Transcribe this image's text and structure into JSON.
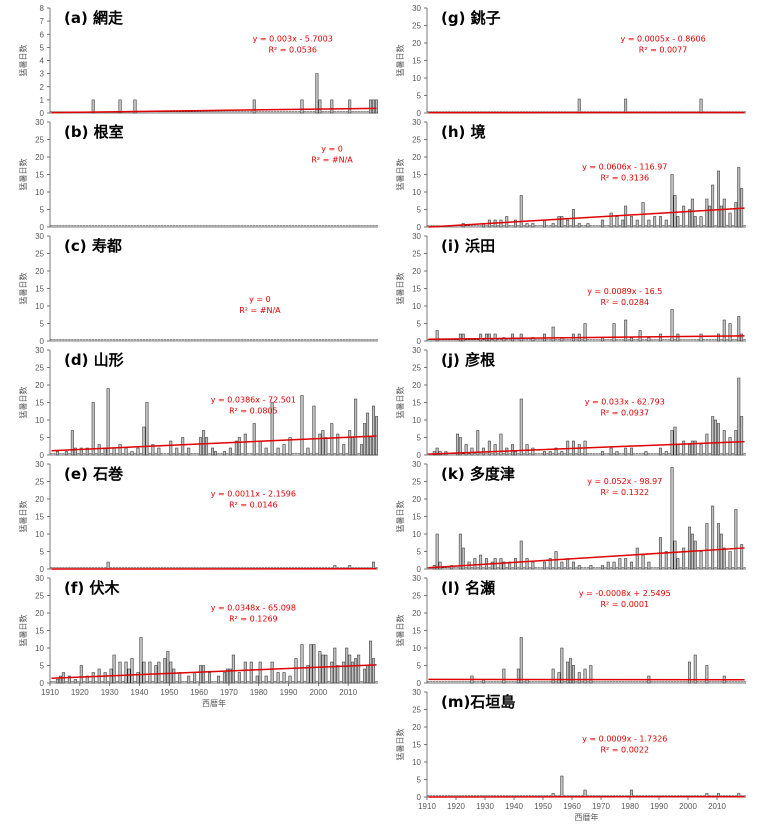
{
  "chart_data": [
    {
      "id": "a",
      "title": "(a) 網走",
      "type": "bar",
      "ylim": [
        0,
        8
      ],
      "yticks": [
        0,
        1,
        2,
        3,
        4,
        5,
        6,
        7,
        8
      ],
      "ylabel": "猛暑日数",
      "equation": "y = 0.003x - 5.7003",
      "r2": "R² = 0.0536",
      "trend": {
        "slope": 0.003,
        "intercept": -5.7003
      },
      "values": {
        "1924": 1,
        "1933": 1,
        "1938": 1,
        "1978": 1,
        "1994": 1,
        "1999": 3,
        "2000": 1,
        "2004": 1,
        "2010": 1,
        "2017": 1,
        "2018": 1,
        "2019": 1
      }
    },
    {
      "id": "b",
      "title": "(b) 根室",
      "type": "bar",
      "ylim": [
        0,
        30
      ],
      "yticks": [
        0,
        5,
        10,
        15,
        20,
        25,
        30
      ],
      "ylabel": "猛暑日数",
      "equation": "y = 0",
      "r2": "R² = #N/A",
      "trend": null,
      "values": {}
    },
    {
      "id": "c",
      "title": "(c) 寿都",
      "type": "bar",
      "ylim": [
        0,
        30
      ],
      "yticks": [
        0,
        5,
        10,
        15,
        20,
        25,
        30
      ],
      "ylabel": "猛暑日数",
      "equation": "y = 0",
      "r2": "R² = #N/A",
      "trend": null,
      "values": {}
    },
    {
      "id": "d",
      "title": "(d) 山形",
      "type": "bar",
      "ylim": [
        0,
        30
      ],
      "yticks": [
        0,
        5,
        10,
        15,
        20,
        25,
        30
      ],
      "ylabel": "猛暑日数",
      "equation": "y = 0.0386x - 72.501",
      "r2": "R² = 0.0805",
      "trend": {
        "slope": 0.0386,
        "intercept": -72.501
      },
      "values": {
        "1912": 1,
        "1915": 1,
        "1917": 7,
        "1918": 2,
        "1920": 2,
        "1922": 2,
        "1924": 15,
        "1926": 3,
        "1928": 2,
        "1929": 19,
        "1931": 2,
        "1933": 3,
        "1935": 2,
        "1937": 1,
        "1939": 2,
        "1941": 8,
        "1942": 15,
        "1944": 3,
        "1946": 2,
        "1950": 4,
        "1952": 2,
        "1954": 5,
        "1956": 2,
        "1960": 5,
        "1961": 7,
        "1962": 5,
        "1964": 2,
        "1965": 1,
        "1968": 1,
        "1970": 2,
        "1972": 4,
        "1973": 5,
        "1975": 6,
        "1978": 9,
        "1980": 4,
        "1982": 2,
        "1984": 15,
        "1986": 2,
        "1988": 3,
        "1990": 5,
        "1994": 17,
        "1996": 2,
        "1998": 14,
        "2000": 6,
        "2001": 7,
        "2002": 5,
        "2004": 9,
        "2006": 6,
        "2008": 3,
        "2010": 7,
        "2011": 5,
        "2012": 16,
        "2014": 3,
        "2015": 9,
        "2016": 12,
        "2017": 5,
        "2018": 14,
        "2019": 11
      }
    },
    {
      "id": "e",
      "title": "(e) 石巻",
      "type": "bar",
      "ylim": [
        0,
        30
      ],
      "yticks": [
        0,
        5,
        10,
        15,
        20,
        25,
        30
      ],
      "ylabel": "猛暑日数",
      "equation": "y = 0.0011x - 2.1596",
      "r2": "R² = 0.0146",
      "trend": {
        "slope": 0.0011,
        "intercept": -2.1596
      },
      "values": {
        "1929": 2,
        "2005": 1,
        "2010": 1,
        "2018": 2
      }
    },
    {
      "id": "f",
      "title": "(f) 伏木",
      "type": "bar",
      "ylim": [
        0,
        30
      ],
      "yticks": [
        0,
        5,
        10,
        15,
        20,
        25,
        30
      ],
      "ylabel": "猛暑日数",
      "equation": "y = 0.0348x - 65.098",
      "r2": "R² = 0.1269",
      "trend": {
        "slope": 0.0348,
        "intercept": -65.098
      },
      "values": {
        "1912": 1,
        "1913": 2,
        "1914": 3,
        "1916": 2,
        "1918": 1,
        "1920": 5,
        "1922": 2,
        "1924": 3,
        "1926": 4,
        "1928": 3,
        "1930": 4,
        "1931": 8,
        "1933": 6,
        "1935": 6,
        "1936": 4,
        "1937": 7,
        "1939": 3,
        "1940": 13,
        "1941": 6,
        "1943": 6,
        "1945": 5,
        "1946": 6,
        "1948": 7,
        "1949": 9,
        "1950": 6,
        "1951": 4,
        "1953": 3,
        "1956": 2,
        "1958": 3,
        "1960": 5,
        "1961": 5,
        "1963": 3,
        "1966": 2,
        "1968": 3,
        "1969": 4,
        "1970": 4,
        "1971": 8,
        "1973": 3,
        "1975": 6,
        "1977": 6,
        "1979": 2,
        "1980": 6,
        "1982": 2,
        "1984": 6,
        "1986": 3,
        "1988": 3,
        "1990": 2,
        "1992": 7,
        "1994": 11,
        "1996": 5,
        "1997": 11,
        "1998": 11,
        "2000": 9,
        "2001": 8,
        "2002": 8,
        "2004": 6,
        "2005": 10,
        "2006": 5,
        "2008": 6,
        "2009": 10,
        "2010": 8,
        "2011": 6,
        "2012": 7,
        "2013": 8,
        "2015": 4,
        "2016": 5,
        "2017": 12,
        "2018": 7
      }
    },
    {
      "id": "g",
      "title": "(g) 銚子",
      "type": "bar",
      "ylim": [
        0,
        30
      ],
      "yticks": [
        0,
        5,
        10,
        15,
        20,
        25,
        30
      ],
      "ylabel": "猛暑日数",
      "equation": "y = 0.0005x - 0.8606",
      "r2": "R² = 0.0077",
      "trend": {
        "slope": 0.0005,
        "intercept": -0.8606
      },
      "values": {
        "1962": 4,
        "1978": 4,
        "2004": 4
      }
    },
    {
      "id": "h",
      "title": "(h) 境",
      "type": "bar",
      "ylim": [
        0,
        30
      ],
      "yticks": [
        0,
        5,
        10,
        15,
        20,
        25,
        30
      ],
      "ylabel": "猛暑日数",
      "equation": "y = 0.0606x - 116.97",
      "r2": "R² = 0.3136",
      "trend": {
        "slope": 0.0606,
        "intercept": -116.97
      },
      "values": {
        "1922": 1,
        "1929": 1,
        "1931": 2,
        "1933": 2,
        "1935": 2,
        "1937": 3,
        "1940": 2,
        "1942": 9,
        "1944": 1,
        "1946": 1,
        "1950": 2,
        "1953": 1,
        "1955": 3,
        "1956": 3,
        "1958": 2,
        "1960": 5,
        "1962": 1,
        "1965": 1,
        "1970": 2,
        "1973": 4,
        "1975": 3,
        "1977": 2,
        "1978": 6,
        "1980": 3,
        "1982": 2,
        "1984": 7,
        "1986": 2,
        "1988": 3,
        "1990": 3,
        "1992": 2,
        "1994": 15,
        "1995": 9,
        "1996": 3,
        "1998": 6,
        "2000": 5,
        "2001": 8,
        "2002": 3,
        "2004": 3,
        "2006": 8,
        "2007": 6,
        "2008": 12,
        "2010": 16,
        "2011": 6,
        "2012": 8,
        "2014": 4,
        "2016": 7,
        "2017": 17,
        "2018": 11
      }
    },
    {
      "id": "i",
      "title": "(i) 浜田",
      "type": "bar",
      "ylim": [
        0,
        30
      ],
      "yticks": [
        0,
        5,
        10,
        15,
        20,
        25,
        30
      ],
      "ylabel": "猛暑日数",
      "equation": "y = 0.0089x - 16.5",
      "r2": "R² = 0.0284",
      "trend": {
        "slope": 0.0089,
        "intercept": -16.5
      },
      "values": {
        "1913": 3,
        "1921": 2,
        "1922": 2,
        "1928": 2,
        "1930": 2,
        "1931": 2,
        "1933": 2,
        "1936": 1,
        "1939": 2,
        "1942": 2,
        "1946": 1,
        "1950": 2,
        "1953": 4,
        "1956": 1,
        "1960": 2,
        "1962": 2,
        "1964": 5,
        "1970": 1,
        "1974": 5,
        "1978": 6,
        "1980": 1,
        "1983": 3,
        "1986": 1,
        "1990": 2,
        "1994": 9,
        "1996": 2,
        "2004": 2,
        "2010": 2,
        "2012": 6,
        "2014": 5,
        "2017": 7,
        "2018": 2
      }
    },
    {
      "id": "j",
      "title": "(j) 彦根",
      "type": "bar",
      "ylim": [
        0,
        30
      ],
      "yticks": [
        0,
        5,
        10,
        15,
        20,
        25,
        30
      ],
      "ylabel": "猛暑日数",
      "equation": "y = 0.033x - 62.793",
      "r2": "R² = 0.0937",
      "trend": {
        "slope": 0.033,
        "intercept": -62.793
      },
      "values": {
        "1912": 1,
        "1913": 2,
        "1914": 1,
        "1916": 1,
        "1920": 6,
        "1921": 5,
        "1923": 3,
        "1925": 2,
        "1927": 7,
        "1929": 2,
        "1931": 4,
        "1933": 3,
        "1935": 6,
        "1937": 2,
        "1939": 3,
        "1940": 1,
        "1942": 16,
        "1944": 3,
        "1946": 2,
        "1950": 1,
        "1952": 1,
        "1954": 2,
        "1956": 1,
        "1958": 4,
        "1960": 4,
        "1962": 3,
        "1964": 4,
        "1970": 1,
        "1973": 2,
        "1975": 1,
        "1978": 2,
        "1980": 2,
        "1985": 1,
        "1990": 2,
        "1992": 1,
        "1994": 7,
        "1995": 8,
        "1996": 3,
        "1998": 4,
        "2000": 3,
        "2001": 4,
        "2002": 4,
        "2004": 3,
        "2006": 6,
        "2008": 11,
        "2009": 10,
        "2010": 9,
        "2012": 7,
        "2014": 5,
        "2016": 7,
        "2017": 22,
        "2018": 11
      }
    },
    {
      "id": "k",
      "title": "(k) 多度津",
      "type": "bar",
      "ylim": [
        0,
        30
      ],
      "yticks": [
        0,
        5,
        10,
        15,
        20,
        25,
        30
      ],
      "ylabel": "猛暑日数",
      "equation": "y = 0.052x - 98.97",
      "r2": "R² = 0.1322",
      "trend": {
        "slope": 0.052,
        "intercept": -98.97
      },
      "values": {
        "1912": 1,
        "1913": 10,
        "1914": 2,
        "1918": 1,
        "1921": 10,
        "1922": 6,
        "1924": 2,
        "1926": 3,
        "1928": 4,
        "1930": 3,
        "1932": 2,
        "1933": 3,
        "1935": 3,
        "1936": 2,
        "1938": 2,
        "1940": 3,
        "1942": 8,
        "1944": 3,
        "1946": 2,
        "1950": 2,
        "1952": 3,
        "1954": 5,
        "1956": 2,
        "1958": 3,
        "1960": 2,
        "1962": 1,
        "1966": 1,
        "1970": 1,
        "1972": 2,
        "1974": 2,
        "1976": 3,
        "1978": 3,
        "1980": 2,
        "1982": 6,
        "1984": 4,
        "1986": 2,
        "1990": 9,
        "1992": 5,
        "1994": 29,
        "1995": 8,
        "1996": 3,
        "1998": 6,
        "2000": 12,
        "2001": 10,
        "2002": 8,
        "2004": 5,
        "2006": 13,
        "2008": 18,
        "2010": 13,
        "2011": 10,
        "2012": 6,
        "2014": 5,
        "2016": 17,
        "2018": 7
      }
    },
    {
      "id": "l",
      "title": "(l) 名瀬",
      "type": "bar",
      "ylim": [
        0,
        30
      ],
      "yticks": [
        0,
        5,
        10,
        15,
        20,
        25,
        30
      ],
      "ylabel": "猛暑日数",
      "equation": "y = -0.0008x + 2.5495",
      "r2": "R² = 0.0001",
      "trend": {
        "slope": -0.0008,
        "intercept": 2.5495
      },
      "values": {
        "1925": 2,
        "1929": 1,
        "1936": 4,
        "1941": 4,
        "1942": 13,
        "1944": 1,
        "1953": 4,
        "1955": 3,
        "1956": 10,
        "1958": 6,
        "1959": 7,
        "1960": 5,
        "1962": 3,
        "1964": 4,
        "1966": 5,
        "1986": 2,
        "2000": 6,
        "2002": 8,
        "2006": 5,
        "2012": 2
      }
    },
    {
      "id": "m",
      "title": "(m)石垣島",
      "type": "bar",
      "ylim": [
        0,
        30
      ],
      "yticks": [
        0,
        5,
        10,
        15,
        20,
        25,
        30
      ],
      "ylabel": "猛暑日数",
      "equation": "y = 0.0009x - 1.7326",
      "r2": "R² = 0.0022",
      "trend": {
        "slope": 0.0009,
        "intercept": -1.7326
      },
      "values": {
        "1953": 1,
        "1956": 6,
        "1964": 2,
        "1980": 2,
        "2006": 1,
        "2010": 1,
        "2017": 1
      }
    }
  ],
  "x_axis": {
    "range": [
      1910,
      2019
    ],
    "ticks": [
      1910,
      1920,
      1930,
      1940,
      1950,
      1960,
      1970,
      1980,
      1990,
      2000,
      2010
    ],
    "xlabel": "西暦年"
  },
  "colors": {
    "bar_fill": "#bfbfbf",
    "bar_stroke": "#262626",
    "trend": "#e00000",
    "label_text": "#e00000",
    "axis": "#595959",
    "gridline": "#d9d9d9"
  }
}
